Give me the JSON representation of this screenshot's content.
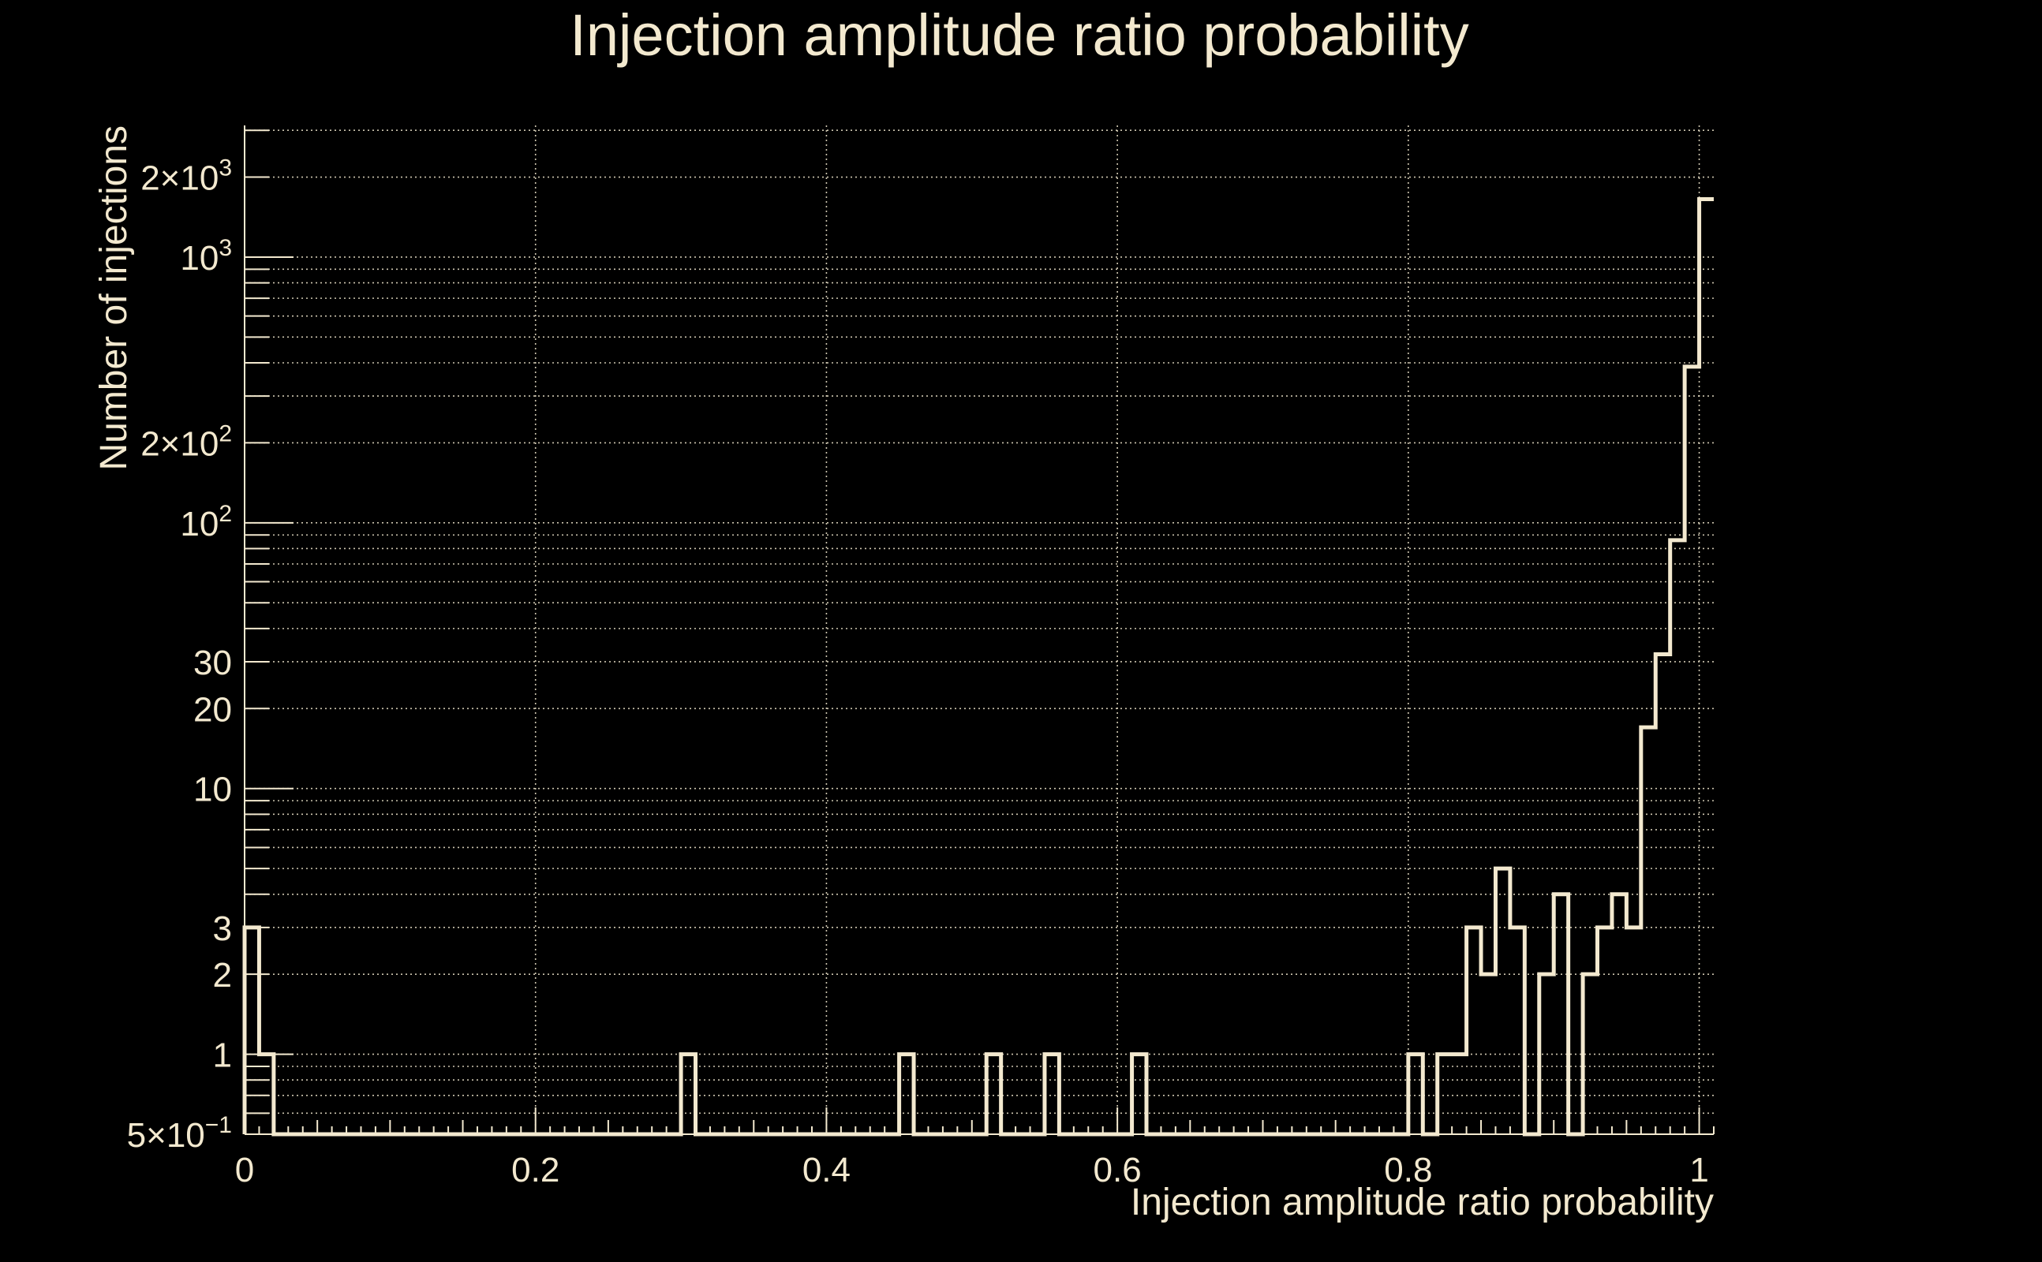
{
  "chart_data": {
    "type": "bar",
    "histogram": true,
    "title": "Injection amplitude ratio probability",
    "xlabel": "Injection amplitude ratio probability",
    "ylabel": "Number of injections",
    "xlim": [
      0,
      1.01
    ],
    "ylim": [
      0.5,
      3130
    ],
    "yscale": "log",
    "grid": true,
    "bin_width": 0.01,
    "bin_starts": [
      0,
      0.01,
      0.02,
      0.03,
      0.04,
      0.05,
      0.06,
      0.07,
      0.08,
      0.09,
      0.1,
      0.11,
      0.12,
      0.13,
      0.14,
      0.15,
      0.16,
      0.17,
      0.18,
      0.19,
      0.2,
      0.21,
      0.22,
      0.23,
      0.24,
      0.25,
      0.26,
      0.27,
      0.28,
      0.29,
      0.3,
      0.31,
      0.32,
      0.33,
      0.34,
      0.35,
      0.36,
      0.37,
      0.38,
      0.39,
      0.4,
      0.41,
      0.42,
      0.43,
      0.44,
      0.45,
      0.46,
      0.47,
      0.48,
      0.49,
      0.5,
      0.51,
      0.52,
      0.53,
      0.54,
      0.55,
      0.56,
      0.57,
      0.58,
      0.59,
      0.6,
      0.61,
      0.62,
      0.63,
      0.64,
      0.65,
      0.66,
      0.67,
      0.68,
      0.69,
      0.7,
      0.71,
      0.72,
      0.73,
      0.74,
      0.75,
      0.76,
      0.77,
      0.78,
      0.79,
      0.8,
      0.81,
      0.82,
      0.83,
      0.84,
      0.85,
      0.86,
      0.87,
      0.88,
      0.89,
      0.9,
      0.91,
      0.92,
      0.93,
      0.94,
      0.95,
      0.96,
      0.97,
      0.98,
      0.99,
      1.0
    ],
    "values": [
      3,
      1,
      0,
      0,
      0,
      0,
      0,
      0,
      0,
      0,
      0,
      0,
      0,
      0,
      0,
      0,
      0,
      0,
      0,
      0,
      0,
      0,
      0,
      0,
      0,
      0,
      0,
      0,
      0,
      0,
      1,
      0,
      0,
      0,
      0,
      0,
      0,
      0,
      0,
      0,
      0,
      0,
      0,
      0,
      0,
      1,
      0,
      0,
      0,
      0,
      0,
      1,
      0,
      0,
      0,
      1,
      0,
      0,
      0,
      0,
      0,
      1,
      0,
      0,
      0,
      0,
      0,
      0,
      0,
      0,
      0,
      0,
      0,
      0,
      0,
      0,
      0,
      0,
      0,
      0,
      1,
      0,
      1,
      1,
      3,
      2,
      5,
      3,
      0,
      2,
      4,
      0,
      2,
      3,
      4,
      3,
      17,
      32,
      86,
      387,
      1652
    ],
    "xticks": [
      {
        "value": 0,
        "label": "0"
      },
      {
        "value": 0.2,
        "label": "0.2"
      },
      {
        "value": 0.4,
        "label": "0.4"
      },
      {
        "value": 0.6,
        "label": "0.6"
      },
      {
        "value": 0.8,
        "label": "0.8"
      },
      {
        "value": 1.0,
        "label": "1"
      }
    ],
    "yticks": [
      {
        "value": 0.5,
        "base": "5×10",
        "sup": "−1"
      },
      {
        "value": 1,
        "base": "1",
        "sup": ""
      },
      {
        "value": 2,
        "base": "2",
        "sup": ""
      },
      {
        "value": 3,
        "base": "3",
        "sup": ""
      },
      {
        "value": 10,
        "base": "10",
        "sup": ""
      },
      {
        "value": 20,
        "base": "20",
        "sup": ""
      },
      {
        "value": 30,
        "base": "30",
        "sup": ""
      },
      {
        "value": 100,
        "base": "10",
        "sup": "2"
      },
      {
        "value": 200,
        "base": "2×10",
        "sup": "2"
      },
      {
        "value": 1000,
        "base": "10",
        "sup": "3"
      },
      {
        "value": 2000,
        "base": "2×10",
        "sup": "3"
      }
    ]
  },
  "colors": {
    "background": "#000000",
    "foreground": "#f3e9cf"
  }
}
